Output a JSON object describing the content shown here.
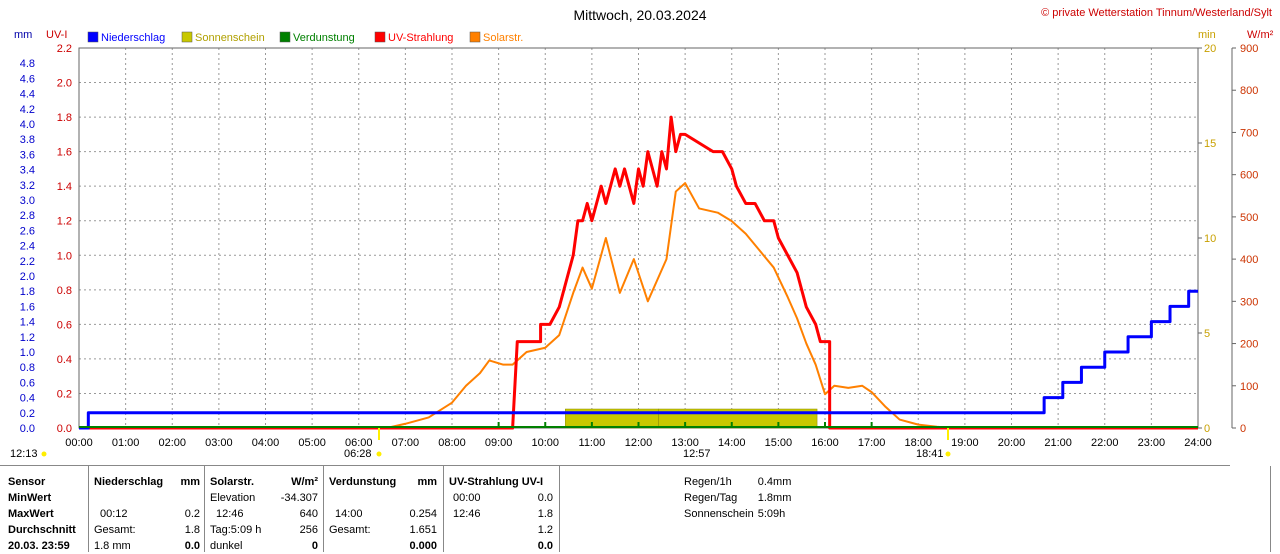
{
  "header": {
    "title": "Mittwoch, 20.03.2024",
    "copyright": "© private Wetterstation Tinnum/Westerland/Sylt",
    "unit_mm": "mm",
    "unit_uv": "UV-I",
    "unit_min": "min",
    "unit_wm2": "W/m²"
  },
  "legend": [
    {
      "label": "Niederschlag",
      "color": "#0000ff"
    },
    {
      "label": "Sonnenschein",
      "color": "#c8c800"
    },
    {
      "label": "Verdunstung",
      "color": "#008000"
    },
    {
      "label": "UV-Strahlung",
      "color": "#ff0000"
    },
    {
      "label": "Solarstr.",
      "color": "#ff8000"
    }
  ],
  "markers": {
    "left_time": "12:13",
    "sunrise": "06:28",
    "noon": "12:57",
    "sunset": "18:41"
  },
  "chart_data": {
    "type": "line",
    "xlabel": "",
    "xlim": [
      0,
      24
    ],
    "x_ticks": [
      "00:00",
      "01:00",
      "02:00",
      "03:00",
      "04:00",
      "05:00",
      "06:00",
      "07:00",
      "08:00",
      "09:00",
      "10:00",
      "11:00",
      "12:00",
      "13:00",
      "14:00",
      "15:00",
      "16:00",
      "17:00",
      "18:00",
      "19:00",
      "20:00",
      "21:00",
      "22:00",
      "23:00",
      "24:00"
    ],
    "axes": {
      "mm": {
        "lim": [
          0,
          5.0
        ],
        "ticks": [
          "0.0",
          "0.2",
          "0.4",
          "0.6",
          "0.8",
          "1.0",
          "1.2",
          "1.4",
          "1.6",
          "1.8",
          "2.0",
          "2.2",
          "2.4",
          "2.6",
          "2.8",
          "3.0",
          "3.2",
          "3.4",
          "3.6",
          "3.8",
          "4.0",
          "4.2",
          "4.4",
          "4.6",
          "4.8"
        ]
      },
      "uv": {
        "lim": [
          0,
          2.2
        ],
        "ticks": [
          "0.0",
          "0.2",
          "0.4",
          "0.6",
          "0.8",
          "1.0",
          "1.2",
          "1.4",
          "1.6",
          "1.8",
          "2.0",
          "2.2"
        ]
      },
      "min": {
        "lim": [
          0,
          20
        ],
        "ticks": [
          "0",
          "5",
          "10",
          "15",
          "20"
        ]
      },
      "wm2": {
        "lim": [
          0,
          900
        ],
        "ticks": [
          "0",
          "100",
          "200",
          "300",
          "400",
          "500",
          "600",
          "700",
          "800",
          "900"
        ]
      }
    },
    "grid": true,
    "series": [
      {
        "name": "Niederschlag",
        "color": "#0000ff",
        "axis": "mm",
        "x": [
          0.0,
          0.2,
          0.2,
          20.7,
          20.7,
          21.1,
          21.1,
          21.5,
          21.5,
          22.0,
          22.0,
          22.5,
          22.5,
          23.0,
          23.0,
          23.4,
          23.4,
          23.8,
          23.8,
          24.0
        ],
        "y": [
          0.0,
          0.0,
          0.2,
          0.2,
          0.4,
          0.4,
          0.6,
          0.6,
          0.8,
          0.8,
          1.0,
          1.0,
          1.2,
          1.2,
          1.4,
          1.4,
          1.6,
          1.6,
          1.8,
          1.8
        ]
      },
      {
        "name": "Sonnenschein",
        "color": "#c8c800",
        "axis": "min",
        "x": [
          10.43,
          12.43,
          12.43,
          15.83
        ],
        "y": [
          1.0,
          1.0,
          1.0,
          1.0
        ]
      },
      {
        "name": "Verdunstung",
        "color": "#008000",
        "axis": "mm",
        "x": [
          9.0,
          10.0,
          11.0,
          12.0,
          13.0,
          14.0,
          15.0,
          16.0,
          17.0
        ],
        "y": [
          0.03,
          0.05,
          0.09,
          0.08,
          0.1,
          0.09,
          0.08,
          0.05,
          0.03
        ]
      },
      {
        "name": "UV-Strahlung",
        "color": "#ff0000",
        "axis": "uv",
        "x": [
          0.0,
          9.3,
          9.4,
          9.5,
          9.9,
          9.9,
          10.1,
          10.3,
          10.5,
          10.6,
          10.7,
          10.8,
          10.9,
          11.0,
          11.1,
          11.2,
          11.3,
          11.4,
          11.5,
          11.6,
          11.7,
          11.8,
          11.9,
          12.0,
          12.1,
          12.2,
          12.3,
          12.4,
          12.5,
          12.6,
          12.7,
          12.8,
          12.9,
          13.0,
          13.6,
          13.8,
          14.0,
          14.1,
          14.3,
          14.5,
          14.7,
          14.9,
          15.0,
          15.2,
          15.4,
          15.5,
          15.6,
          15.8,
          15.9,
          16.1,
          16.1,
          24.0
        ],
        "y": [
          0.0,
          0.0,
          0.5,
          0.5,
          0.5,
          0.6,
          0.6,
          0.7,
          0.9,
          1.0,
          1.2,
          1.2,
          1.3,
          1.2,
          1.3,
          1.4,
          1.3,
          1.4,
          1.5,
          1.4,
          1.5,
          1.4,
          1.3,
          1.5,
          1.4,
          1.6,
          1.5,
          1.4,
          1.6,
          1.5,
          1.8,
          1.6,
          1.7,
          1.7,
          1.6,
          1.6,
          1.5,
          1.4,
          1.3,
          1.3,
          1.2,
          1.2,
          1.1,
          1.0,
          0.9,
          0.8,
          0.7,
          0.6,
          0.5,
          0.5,
          0.0,
          0.0
        ]
      },
      {
        "name": "Solarstr.",
        "color": "#ff8000",
        "axis": "wm2",
        "x": [
          0.0,
          6.6,
          7.0,
          7.5,
          8.0,
          8.3,
          8.6,
          8.8,
          9.1,
          9.3,
          9.6,
          10.0,
          10.3,
          10.6,
          10.8,
          11.0,
          11.3,
          11.6,
          11.9,
          12.2,
          12.4,
          12.6,
          12.8,
          13.0,
          13.3,
          13.7,
          14.0,
          14.3,
          14.6,
          14.9,
          15.2,
          15.4,
          15.6,
          15.8,
          16.0,
          16.2,
          16.5,
          16.8,
          17.0,
          17.3,
          17.6,
          18.0,
          18.4,
          18.7,
          24.0
        ],
        "y": [
          0.0,
          0.0,
          10,
          25,
          60,
          100,
          130,
          160,
          150,
          150,
          180,
          190,
          220,
          320,
          380,
          330,
          450,
          320,
          400,
          300,
          350,
          400,
          560,
          580,
          520,
          510,
          490,
          460,
          420,
          380,
          310,
          260,
          200,
          150,
          80,
          100,
          95,
          100,
          85,
          50,
          20,
          8,
          3,
          0,
          0
        ]
      }
    ]
  },
  "stats": {
    "col1": {
      "h": "Sensor",
      "r1": "MinWert",
      "r2": "MaxWert",
      "r3": "Durchschnitt",
      "r4": "20.03. 23:59"
    },
    "col2": {
      "h": "Niederschlag",
      "hu": "mm",
      "r2a": "00:12",
      "r2b": "0.2",
      "r3a": "Gesamt:",
      "r3b": "1.8",
      "r4a": "1.8 mm",
      "r4b": "0.0"
    },
    "col3": {
      "h": "Solarstr.",
      "hu": "W/m²",
      "r1a": "Elevation",
      "r1b": "-34.307",
      "r2a": "12:46",
      "r2b": "640",
      "r3a": "Tag:5:09 h",
      "r3b": "256",
      "r4a": "dunkel",
      "r4b": "0"
    },
    "col4": {
      "h": "Verdunstung",
      "hu": "mm",
      "r2a": "14:00",
      "r2b": "0.254",
      "r3a": "Gesamt:",
      "r3b": "1.651",
      "r4b": "0.000"
    },
    "col5": {
      "h": "UV-Strahlung UV-I",
      "r1a": "00:00",
      "r1b": "0.0",
      "r2a": "12:46",
      "r2b": "1.8",
      "r3b": "1.2",
      "r4b": "0.0"
    },
    "col6": {
      "r1a": "Regen/1h",
      "r1b": "0.4mm",
      "r2a": "Regen/Tag",
      "r2b": "1.8mm",
      "r3a": "Sonnenschein",
      "r3b": "5:09h"
    }
  }
}
